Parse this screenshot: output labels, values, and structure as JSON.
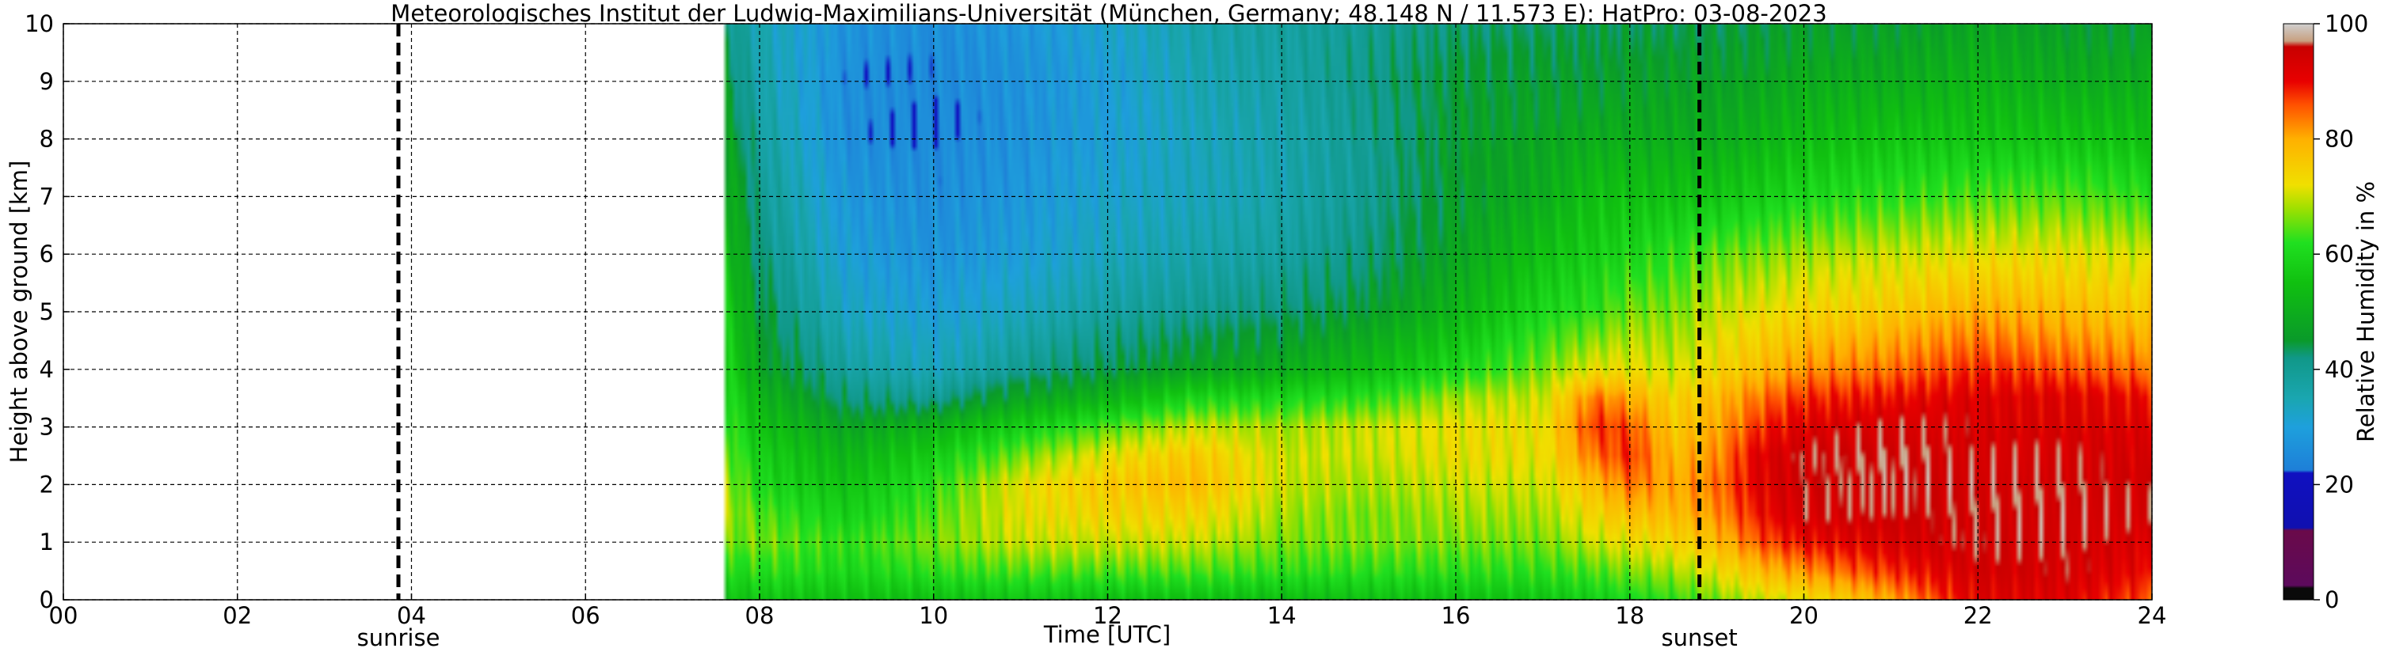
{
  "chart_data": {
    "type": "heatmap",
    "title": "Meteorologisches Institut der Ludwig-Maximilians-Universität (München, Germany; 48.148 N / 11.573 E):    HatPro: 03-08-2023",
    "xlabel": "Time [UTC]",
    "ylabel": "Height above ground [km]",
    "xlim": [
      0,
      24
    ],
    "ylim": [
      0,
      10
    ],
    "x_ticks": [
      "00",
      "02",
      "04",
      "06",
      "08",
      "10",
      "12",
      "14",
      "16",
      "18",
      "20",
      "22",
      "24"
    ],
    "y_ticks": [
      "0",
      "1",
      "2",
      "3",
      "4",
      "5",
      "6",
      "7",
      "8",
      "9",
      "10"
    ],
    "grid": true,
    "data_start_hour": 7.6,
    "markers": [
      {
        "label": "sunrise",
        "x": 3.85
      },
      {
        "label": "sunset",
        "x": 18.8
      }
    ],
    "colorbar": {
      "label": "Relative Humidity in %",
      "range": [
        0,
        100
      ],
      "ticks": [
        "0",
        "20",
        "40",
        "60",
        "80",
        "100"
      ],
      "stops": [
        {
          "v": 0,
          "color": "#0a0a0a"
        },
        {
          "v": 2,
          "color": "#0a0a0a"
        },
        {
          "v": 2.5,
          "color": "#5c0a5c"
        },
        {
          "v": 12,
          "color": "#6a0a4a"
        },
        {
          "v": 12.5,
          "color": "#1010b0"
        },
        {
          "v": 22,
          "color": "#1010c0"
        },
        {
          "v": 22.5,
          "color": "#1e7fd8"
        },
        {
          "v": 30,
          "color": "#1ea0dc"
        },
        {
          "v": 35,
          "color": "#1aa6b0"
        },
        {
          "v": 42,
          "color": "#109888"
        },
        {
          "v": 45,
          "color": "#0a9a2a"
        },
        {
          "v": 55,
          "color": "#10c010"
        },
        {
          "v": 62,
          "color": "#20e020"
        },
        {
          "v": 68,
          "color": "#a0e000"
        },
        {
          "v": 72,
          "color": "#f0e000"
        },
        {
          "v": 80,
          "color": "#ffb000"
        },
        {
          "v": 86,
          "color": "#ff5000"
        },
        {
          "v": 90,
          "color": "#e80000"
        },
        {
          "v": 96,
          "color": "#c80000"
        },
        {
          "v": 97,
          "color": "#c8a080"
        },
        {
          "v": 100,
          "color": "#d0d0d0"
        }
      ]
    },
    "rh_field": {
      "heights_km": [
        0,
        0.5,
        1,
        1.5,
        2,
        2.5,
        3,
        3.5,
        4,
        5,
        6,
        7,
        8,
        9,
        10
      ],
      "times_h": [
        7.6,
        8,
        9,
        10,
        11,
        12,
        13,
        14,
        15,
        16,
        17,
        17.6,
        18,
        18.5,
        19,
        19.5,
        20,
        21,
        22,
        23,
        24
      ],
      "values": [
        [
          55,
          60,
          65,
          68,
          68,
          66,
          64,
          62,
          60,
          58,
          55,
          52,
          48,
          45,
          42
        ],
        [
          56,
          62,
          66,
          64,
          60,
          58,
          55,
          52,
          48,
          45,
          42,
          40,
          38,
          36,
          35
        ],
        [
          55,
          60,
          62,
          58,
          55,
          52,
          48,
          42,
          38,
          33,
          30,
          28,
          26,
          26,
          27
        ],
        [
          55,
          62,
          66,
          64,
          62,
          58,
          52,
          40,
          34,
          30,
          27,
          26,
          25,
          25,
          26
        ],
        [
          56,
          64,
          70,
          72,
          72,
          66,
          58,
          48,
          40,
          34,
          30,
          28,
          27,
          27,
          28
        ],
        [
          55,
          64,
          70,
          74,
          76,
          72,
          64,
          52,
          44,
          38,
          34,
          32,
          30,
          30,
          32
        ],
        [
          55,
          64,
          70,
          74,
          78,
          76,
          70,
          60,
          48,
          40,
          36,
          34,
          34,
          35,
          36
        ],
        [
          54,
          62,
          66,
          68,
          70,
          70,
          68,
          60,
          50,
          42,
          38,
          36,
          36,
          37,
          38
        ],
        [
          55,
          62,
          66,
          66,
          68,
          70,
          70,
          62,
          54,
          46,
          42,
          40,
          40,
          41,
          40
        ],
        [
          55,
          62,
          66,
          68,
          70,
          72,
          72,
          68,
          60,
          52,
          48,
          46,
          46,
          45,
          42
        ],
        [
          56,
          62,
          66,
          68,
          70,
          72,
          72,
          70,
          66,
          60,
          55,
          50,
          48,
          46,
          43
        ],
        [
          58,
          64,
          70,
          74,
          78,
          84,
          88,
          84,
          72,
          62,
          58,
          55,
          50,
          46,
          44
        ],
        [
          60,
          66,
          72,
          78,
          84,
          88,
          86,
          80,
          72,
          66,
          60,
          55,
          50,
          47,
          44
        ],
        [
          62,
          68,
          74,
          78,
          80,
          78,
          76,
          74,
          70,
          66,
          62,
          55,
          50,
          47,
          44
        ],
        [
          66,
          72,
          78,
          82,
          84,
          82,
          80,
          78,
          74,
          70,
          65,
          56,
          50,
          47,
          44
        ],
        [
          70,
          78,
          86,
          90,
          92,
          92,
          88,
          84,
          78,
          72,
          66,
          58,
          52,
          48,
          45
        ],
        [
          72,
          82,
          90,
          94,
          95,
          95,
          92,
          88,
          82,
          74,
          68,
          60,
          54,
          50,
          46
        ],
        [
          80,
          88,
          93,
          95,
          96,
          96,
          94,
          90,
          84,
          76,
          70,
          62,
          56,
          50,
          46
        ],
        [
          92,
          94,
          95,
          95,
          95,
          94,
          93,
          92,
          88,
          80,
          72,
          64,
          56,
          52,
          48
        ],
        [
          92,
          94,
          95,
          95,
          95,
          94,
          93,
          92,
          86,
          78,
          72,
          64,
          56,
          50,
          46
        ],
        [
          86,
          90,
          92,
          94,
          94,
          93,
          92,
          90,
          84,
          76,
          70,
          62,
          55,
          50,
          46
        ]
      ]
    }
  }
}
